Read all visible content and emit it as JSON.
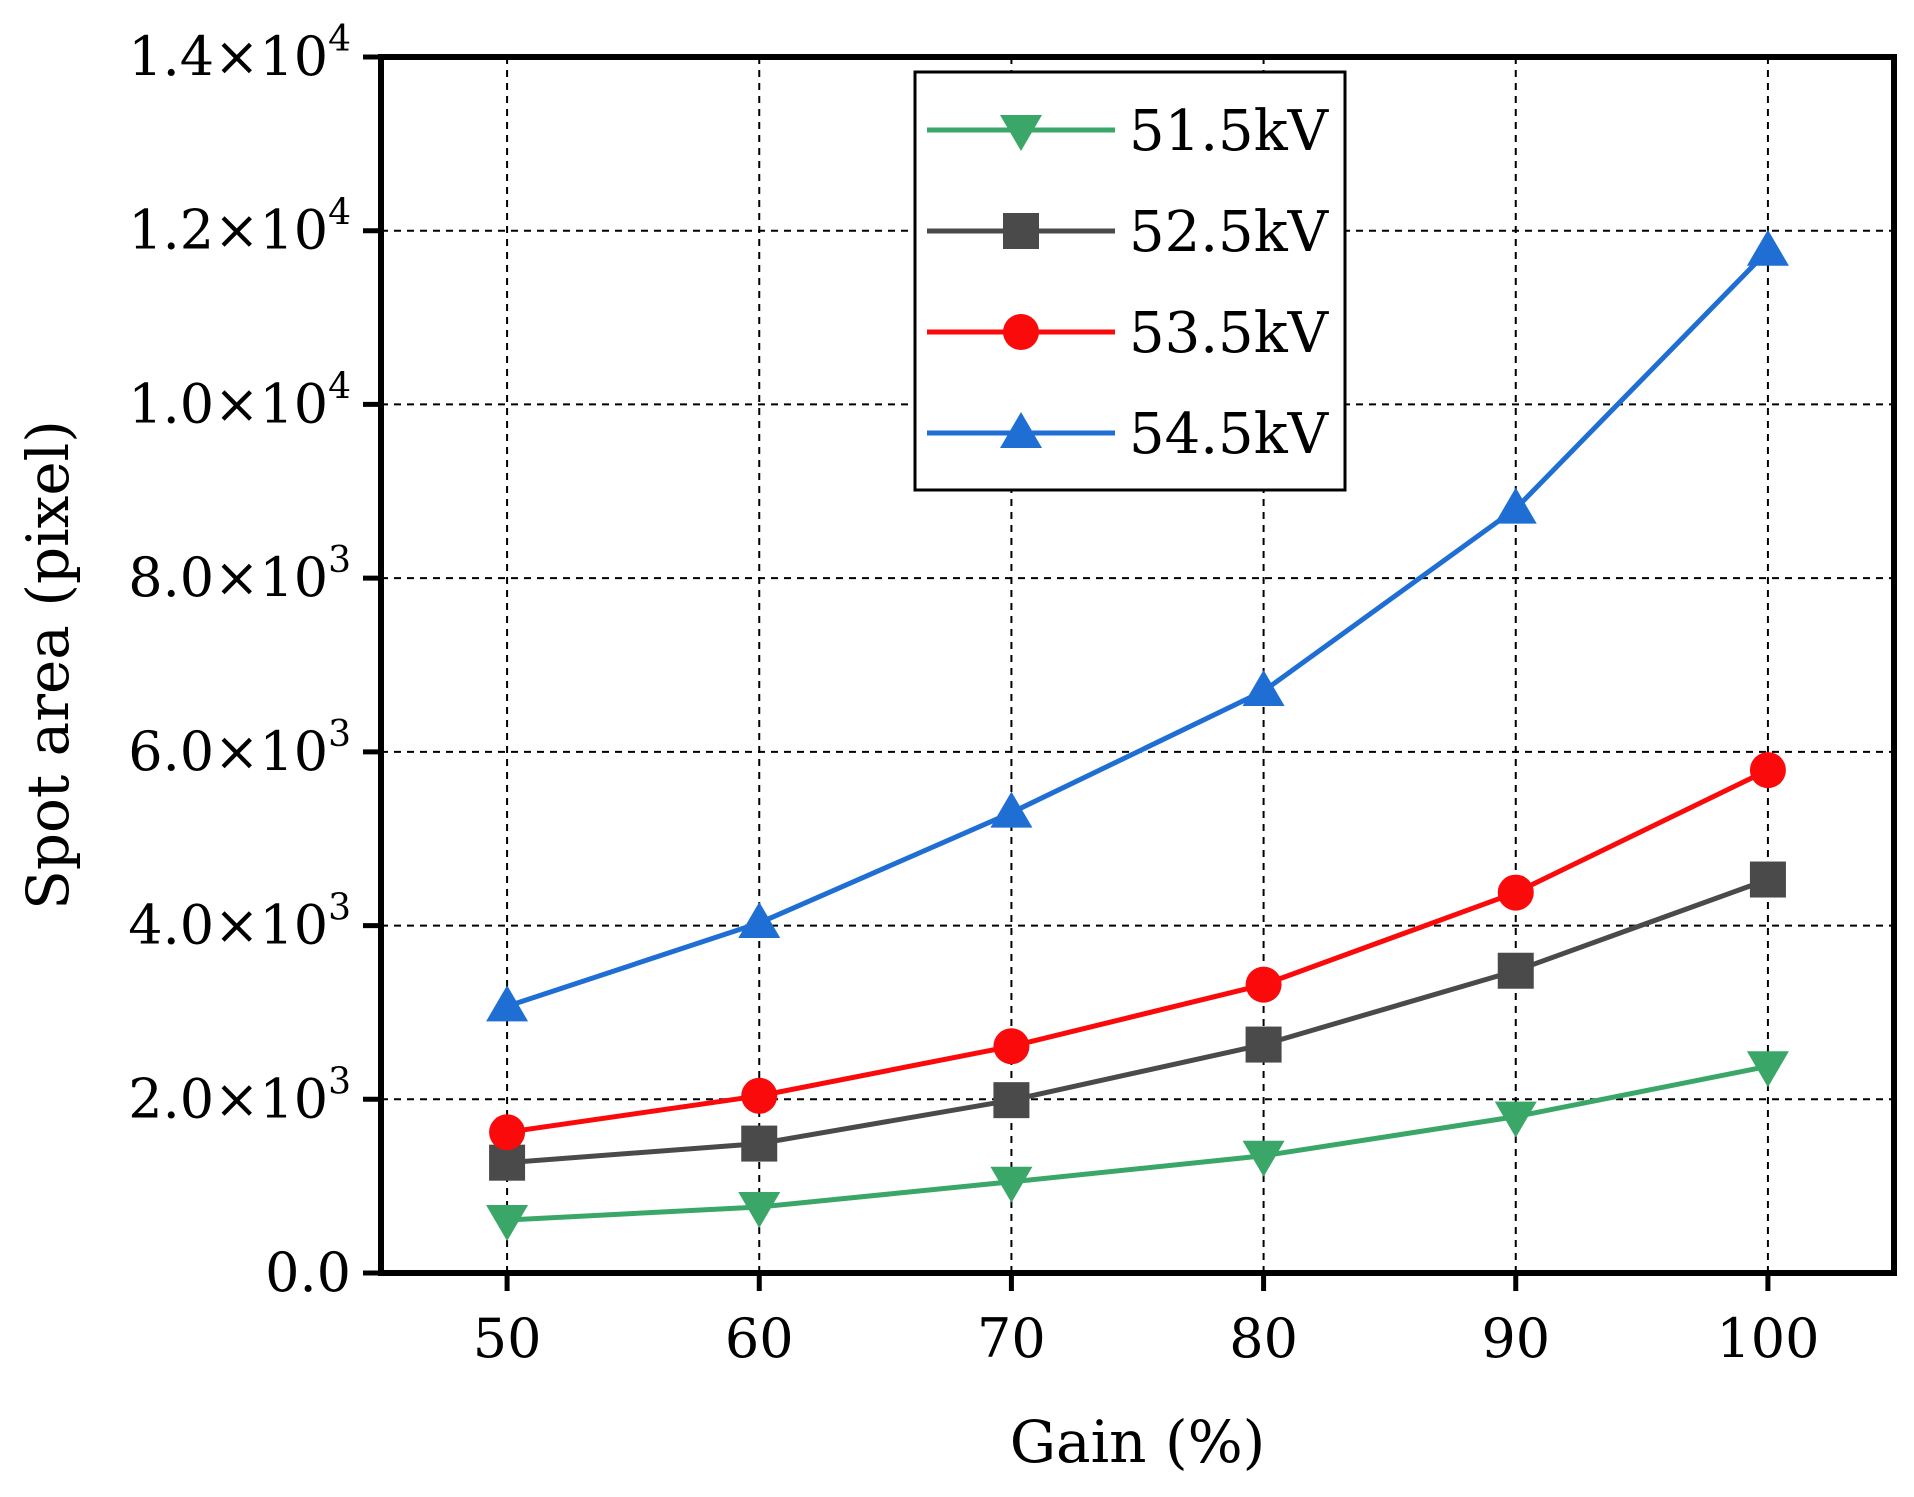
{
  "chart_data": {
    "type": "line",
    "title": "",
    "xlabel": "Gain (%)",
    "ylabel": "Spot area (pixel)",
    "xlim": [
      45,
      105
    ],
    "ylim": [
      0,
      14000
    ],
    "grid": true,
    "legend_position": "top-center",
    "x_ticks": [
      50,
      60,
      70,
      80,
      90,
      100
    ],
    "x_tick_labels": [
      "50",
      "60",
      "70",
      "80",
      "90",
      "100"
    ],
    "y_ticks": [
      0,
      2000,
      4000,
      6000,
      8000,
      10000,
      12000,
      14000
    ],
    "y_tick_labels": [
      {
        "mantissa": "0.0",
        "exp": ""
      },
      {
        "mantissa": "2.0×10",
        "exp": "3"
      },
      {
        "mantissa": "4.0×10",
        "exp": "3"
      },
      {
        "mantissa": "6.0×10",
        "exp": "3"
      },
      {
        "mantissa": "8.0×10",
        "exp": "3"
      },
      {
        "mantissa": "1.0×10",
        "exp": "4"
      },
      {
        "mantissa": "1.2×10",
        "exp": "4"
      },
      {
        "mantissa": "1.4×10",
        "exp": "4"
      }
    ],
    "x": [
      50,
      60,
      70,
      80,
      90,
      100
    ],
    "series": [
      {
        "name": "51.5kV",
        "color": "#3aa769",
        "marker": "triangle-down",
        "values": [
          610,
          760,
          1050,
          1350,
          1800,
          2380
        ]
      },
      {
        "name": "52.5kV",
        "color": "#4a4a4a",
        "marker": "square",
        "values": [
          1270,
          1490,
          1990,
          2630,
          3480,
          4530
        ]
      },
      {
        "name": "53.5kV",
        "color": "#fa0a0a",
        "marker": "circle",
        "values": [
          1620,
          2040,
          2610,
          3320,
          4380,
          5790
        ]
      },
      {
        "name": "54.5kV",
        "color": "#1f6ed4",
        "marker": "triangle-up",
        "values": [
          3070,
          4030,
          5300,
          6700,
          8800,
          11770
        ]
      }
    ]
  }
}
